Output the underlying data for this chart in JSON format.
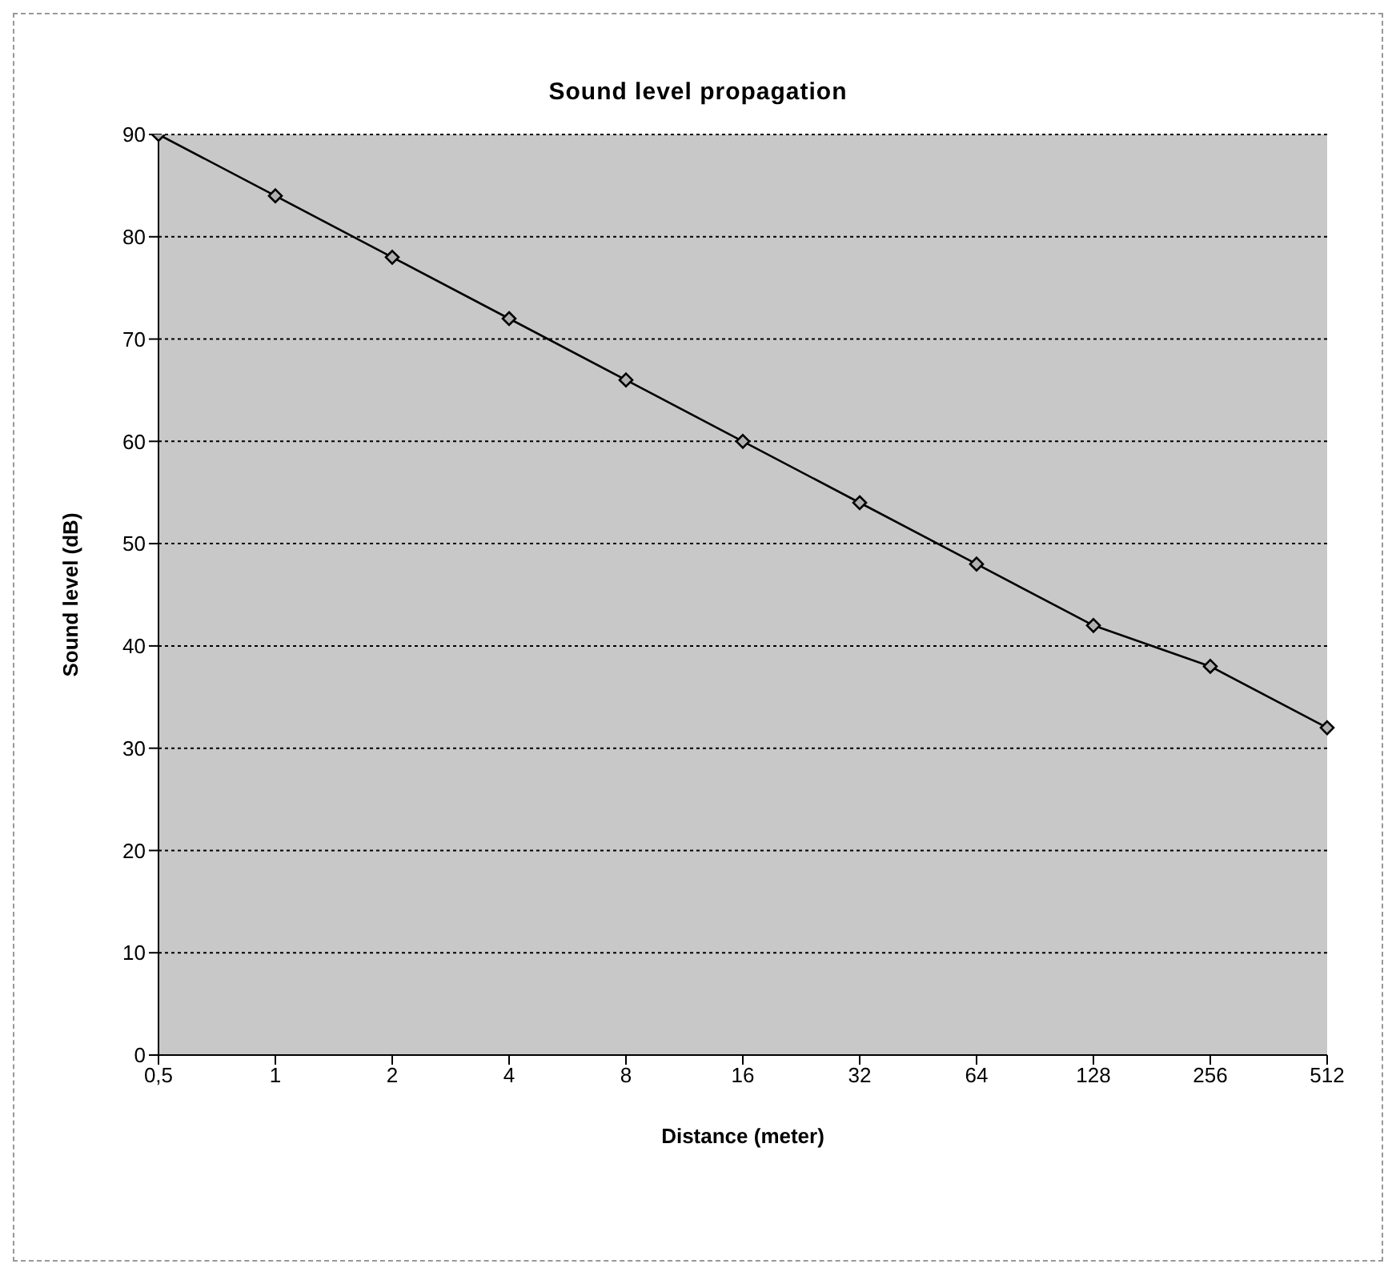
{
  "chart_data": {
    "type": "line",
    "title": "Sound level propagation",
    "xlabel": "Distance (meter)",
    "ylabel": "Sound level (dB)",
    "categories": [
      "0,5",
      "1",
      "2",
      "4",
      "8",
      "16",
      "32",
      "64",
      "128",
      "256",
      "512"
    ],
    "series": [
      {
        "color": "#000000",
        "values": [
          90,
          84,
          78,
          72,
          66,
          60,
          54,
          48,
          42,
          38,
          32
        ]
      }
    ],
    "ylim": [
      0,
      90
    ],
    "yticks": [
      0,
      10,
      20,
      30,
      40,
      50,
      60,
      70,
      80,
      90
    ],
    "grid": "y",
    "marker": "diamond",
    "line_style": "solid",
    "legend": false
  }
}
